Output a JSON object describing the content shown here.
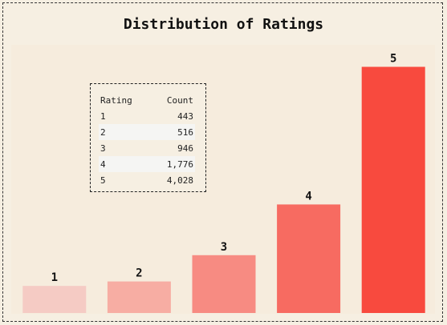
{
  "chart_data": {
    "type": "bar",
    "title": "Distribution of Ratings",
    "categories": [
      "1",
      "2",
      "3",
      "4",
      "5"
    ],
    "values": [
      443,
      516,
      946,
      1776,
      4028
    ],
    "colors": [
      "#f5cbc4",
      "#f7ada3",
      "#f78b82",
      "#f76b61",
      "#f84a3e"
    ],
    "xlabel": "",
    "ylabel": "",
    "ylim": [
      0,
      4100
    ],
    "grid": false
  },
  "table": {
    "headers": [
      "Rating",
      "Count"
    ],
    "rows": [
      [
        "1",
        "443"
      ],
      [
        "2",
        "516"
      ],
      [
        "3",
        "946"
      ],
      [
        "4",
        "1,776"
      ],
      [
        "5",
        "4,028"
      ]
    ]
  }
}
